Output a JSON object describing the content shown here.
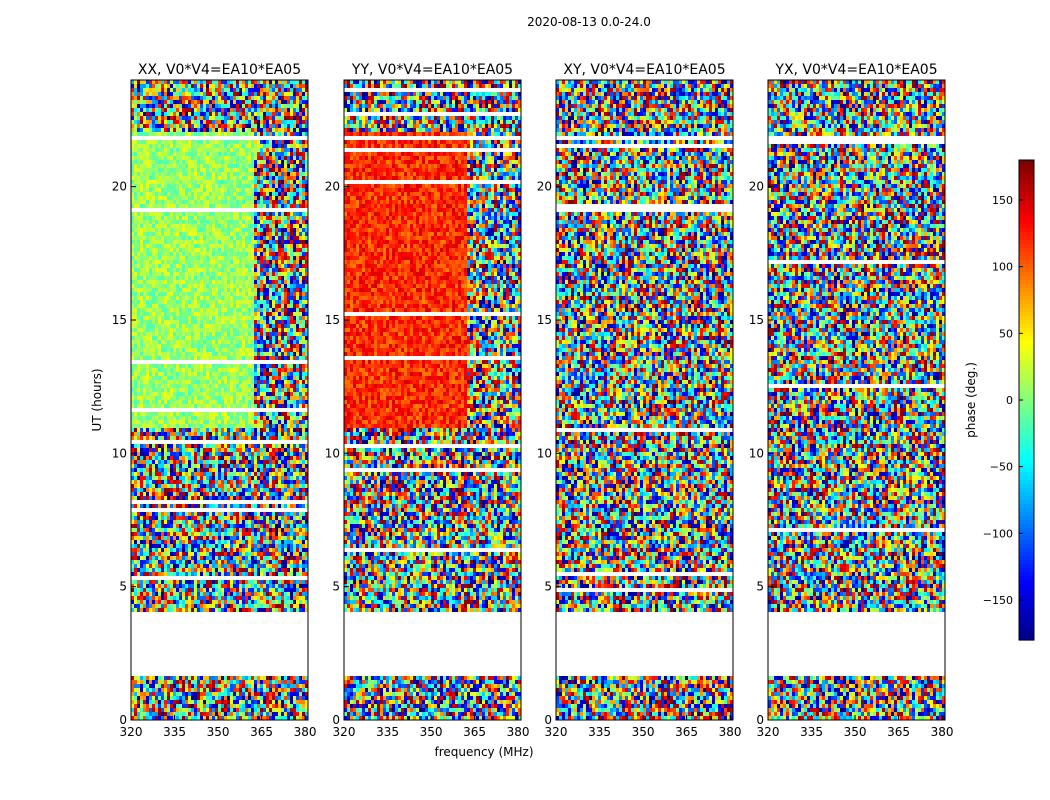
{
  "figure_title": "2020-08-13 0.0-24.0",
  "chart_data": {
    "type": "heatmap",
    "suptitle": "2020-08-13 0.0-24.0",
    "xlabel": "frequency (MHz)",
    "ylabel": "UT (hours)",
    "xlim": [
      320,
      381
    ],
    "ylim": [
      0,
      24
    ],
    "xticks": [
      320,
      335,
      350,
      365,
      380
    ],
    "yticks": [
      0,
      5,
      10,
      15,
      20
    ],
    "colorbar": {
      "label": "phase (deg.)",
      "range": [
        -180,
        180
      ],
      "ticks": [
        -150,
        -100,
        -50,
        0,
        50,
        100,
        150
      ],
      "colormap": "jet"
    },
    "panels": [
      {
        "title": "XX, V0*V4=EA10*EA05",
        "polarization": "XX",
        "baseline": "V0*V4=EA10*EA05",
        "coherent_phase_deg": 10
      },
      {
        "title": "YY, V0*V4=EA10*EA05",
        "polarization": "YY",
        "baseline": "V0*V4=EA10*EA05",
        "coherent_phase_deg": 120
      },
      {
        "title": "XY, V0*V4=EA10*EA05",
        "polarization": "XY",
        "baseline": "V0*V4=EA10*EA05",
        "coherent_phase_deg": null
      },
      {
        "title": "YX, V0*V4=EA10*EA05",
        "polarization": "YX",
        "baseline": "V0*V4=EA10*EA05",
        "coherent_phase_deg": null
      }
    ],
    "data_gaps_ut_hours": [
      [
        1.6,
        4.0
      ],
      [
        21.7,
        21.9
      ]
    ],
    "coherent_band_mhz": [
      320,
      362
    ]
  }
}
